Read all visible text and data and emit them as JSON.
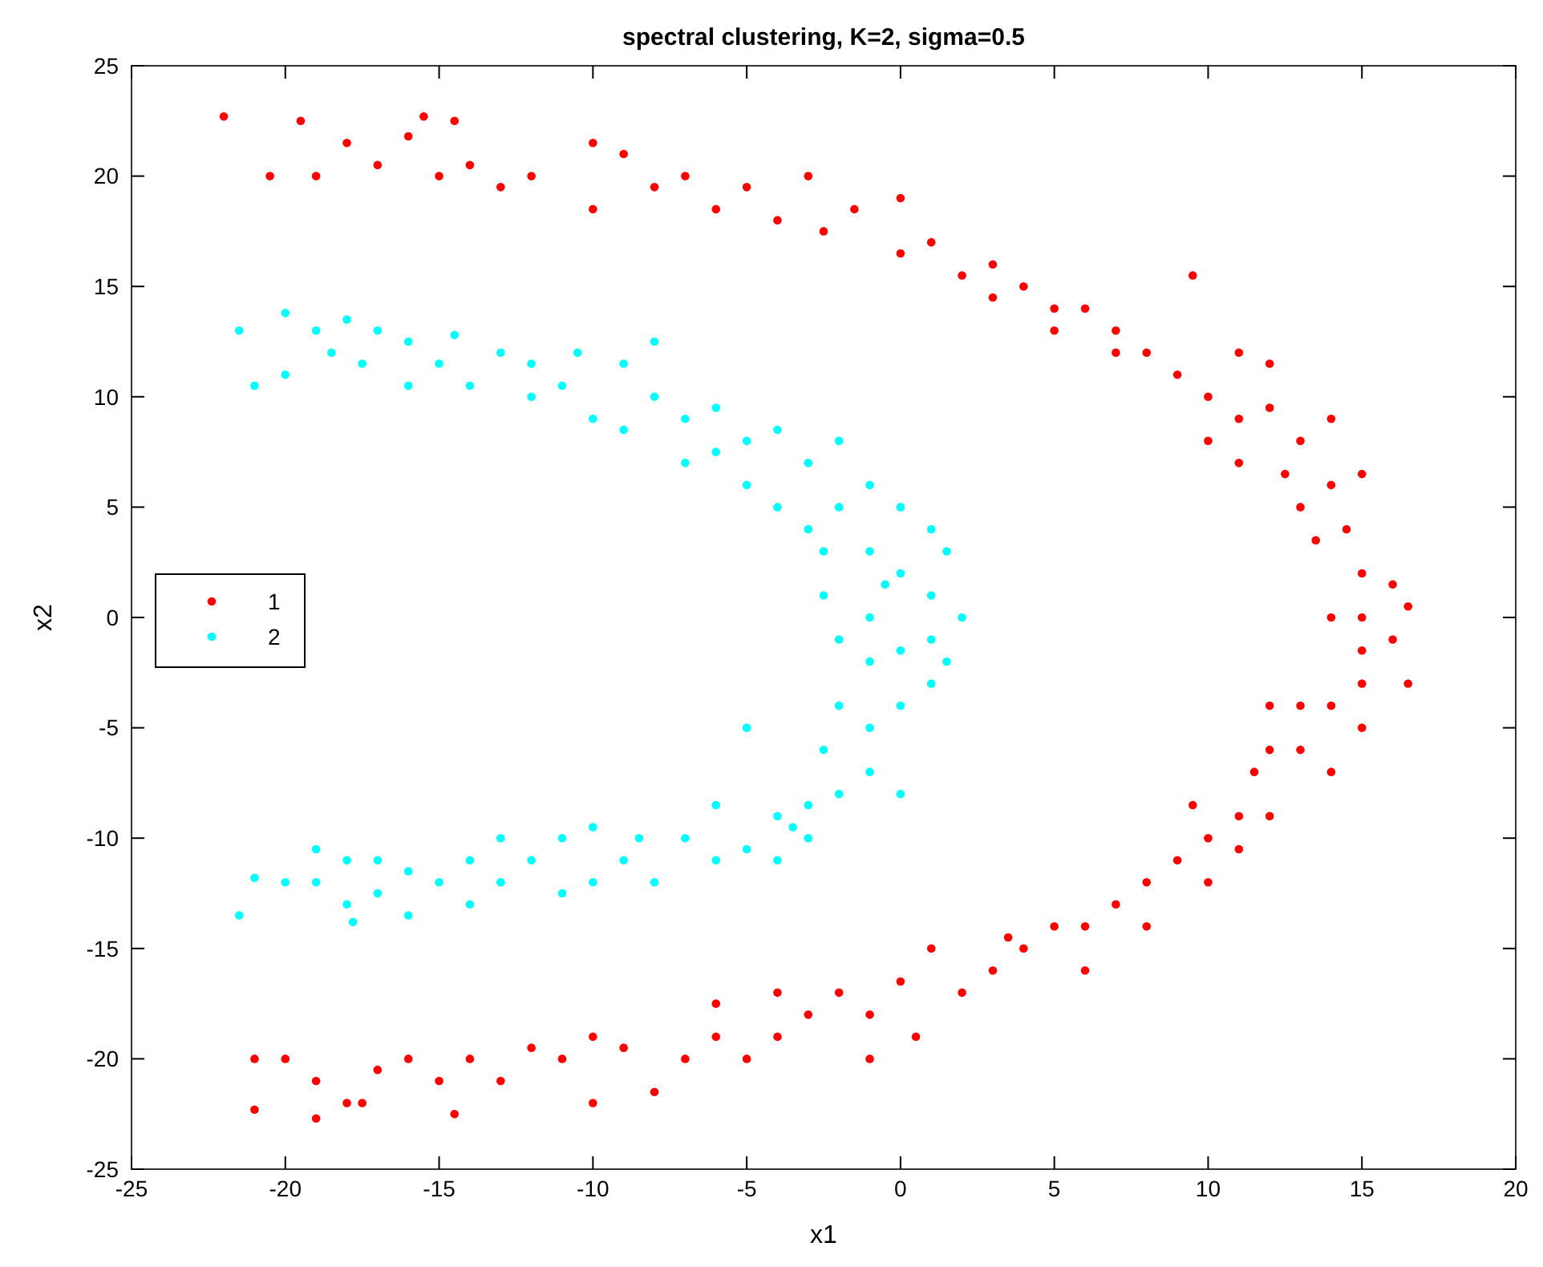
{
  "chart_data": {
    "type": "scatter",
    "title": "spectral clustering, K=2, sigma=0.5",
    "xlabel": "x1",
    "ylabel": "x2",
    "xlim": [
      -25,
      20
    ],
    "xticks": [
      -25,
      -20,
      -15,
      -10,
      -5,
      0,
      5,
      10,
      15,
      20
    ],
    "ylim": [
      -25,
      25
    ],
    "yticks": [
      -25,
      -20,
      -15,
      -10,
      -5,
      0,
      5,
      10,
      15,
      20,
      25
    ],
    "grid": false,
    "legend": "left",
    "marker": "circle",
    "series": [
      {
        "name": "1",
        "color": "#ff0000",
        "x": [
          -22,
          -20.5,
          -19.5,
          -19,
          -18,
          -17,
          -16,
          -15.5,
          -15,
          -14.5,
          -14,
          -13,
          -12,
          -10,
          -10,
          -9,
          -8,
          -7,
          -6,
          -5,
          -4,
          -3,
          -2.5,
          -1.5,
          0,
          0,
          1,
          2,
          3,
          3,
          4,
          5,
          5,
          6,
          7,
          7,
          8,
          9,
          9.5,
          10,
          10,
          11,
          11,
          12,
          12,
          12.5,
          13,
          13,
          13.5,
          14,
          14.5,
          15,
          15,
          15,
          16,
          16.5,
          16,
          15,
          14,
          15,
          16.5,
          14,
          15,
          13,
          14,
          12,
          12,
          11,
          10,
          9.5,
          10,
          9,
          8,
          7,
          6,
          6,
          5,
          4,
          3,
          2,
          1,
          0,
          -1,
          -1,
          -2,
          -3,
          -4,
          -4,
          -5,
          -6,
          -7,
          -8,
          -9,
          -10,
          -11,
          -12,
          -13,
          -14,
          -14.5,
          -15,
          -16,
          -17,
          -18,
          -19,
          -19,
          -20,
          -21,
          -21,
          -17.5,
          -10,
          -6,
          0.5,
          3.5,
          8,
          11,
          13,
          12,
          11,
          14,
          11.5
        ],
        "values": [
          22.7,
          20,
          22.5,
          20,
          21.5,
          20.5,
          21.8,
          22.7,
          20,
          22.5,
          20.5,
          19.5,
          20,
          21.5,
          18.5,
          21,
          19.5,
          20,
          18.5,
          19.5,
          18,
          20,
          17.5,
          18.5,
          19,
          16.5,
          17,
          15.5,
          14.5,
          16,
          15,
          14,
          13,
          14,
          13,
          12,
          12,
          11,
          15.5,
          10,
          8,
          9,
          7,
          9.5,
          11.5,
          6.5,
          8,
          5,
          3.5,
          6,
          4,
          2,
          6.5,
          0,
          1.5,
          0.5,
          -1,
          -1.5,
          0,
          -3,
          -3,
          -4,
          -5,
          -6,
          -7,
          -6,
          -9,
          -9,
          -10,
          -8.5,
          -12,
          -11,
          -12,
          -13,
          -14,
          -16,
          -14,
          -15,
          -16,
          -17,
          -15,
          -16.5,
          -18,
          -20,
          -17,
          -18,
          -17,
          -19,
          -20,
          -19,
          -20,
          -21.5,
          -19.5,
          -22,
          -20,
          -19.5,
          -21,
          -20,
          -22.5,
          -21,
          -20,
          -20.5,
          -22,
          -22.7,
          -21,
          -20,
          -22.3,
          -20,
          -22,
          -19,
          -17.5,
          -19,
          -14.5,
          -14,
          -10.5,
          -4,
          -4,
          12,
          9,
          -7
        ]
      },
      {
        "name": "2",
        "color": "#00ffff",
        "x": [
          -21.5,
          -21,
          -20,
          -20,
          -19,
          -18.5,
          -18,
          -17.5,
          -17,
          -16,
          -16,
          -15,
          -14.5,
          -14,
          -13,
          -12,
          -12,
          -11,
          -10.5,
          -10,
          -9,
          -9,
          -8,
          -8,
          -7,
          -7,
          -6,
          -6,
          -5,
          -5,
          -4,
          -4,
          -3,
          -3,
          -2,
          -2,
          -2.5,
          -1,
          -1,
          0,
          0,
          1,
          1,
          1.5,
          2,
          1.5,
          1,
          -1,
          -2,
          -2.5,
          -1,
          0,
          0,
          -1,
          -2,
          -2.5,
          -1,
          0,
          -2,
          -3,
          -3,
          -4,
          -4,
          -5,
          -5,
          -6,
          -6,
          -7,
          -8,
          -8.5,
          -9,
          -10,
          -10,
          -11,
          -11,
          -12,
          -13,
          -13,
          -14,
          -14,
          -15,
          -16,
          -16,
          -17,
          -17,
          -18,
          -18,
          -19,
          -19,
          -20,
          -21,
          -21.5,
          -17.8,
          1,
          -0.5,
          -3.5
        ],
        "values": [
          13,
          10.5,
          13.8,
          11,
          13,
          12,
          13.5,
          11.5,
          13,
          12.5,
          10.5,
          11.5,
          12.8,
          10.5,
          12,
          10,
          11.5,
          10.5,
          12,
          9,
          11.5,
          8.5,
          10,
          12.5,
          9,
          7,
          9.5,
          7.5,
          8,
          6,
          8.5,
          5,
          7,
          4,
          8,
          5,
          3,
          6,
          3,
          5,
          2,
          4,
          1,
          3,
          0,
          -2,
          -3,
          0,
          -1,
          1,
          -2,
          -1.5,
          -4,
          -5,
          -4,
          -6,
          -7,
          -8,
          -8,
          -8.5,
          -10,
          -9,
          -11,
          -10.5,
          -5,
          -8.5,
          -11,
          -10,
          -12,
          -10,
          -11,
          -9.5,
          -12,
          -10,
          -12.5,
          -11,
          -12,
          -10,
          -13,
          -11,
          -12,
          -11.5,
          -13.5,
          -11,
          -12.5,
          -13,
          -11,
          -12,
          -10.5,
          -12,
          -11.8,
          -13.5,
          -13.8,
          -1,
          1.5,
          -9.5
        ]
      }
    ]
  }
}
